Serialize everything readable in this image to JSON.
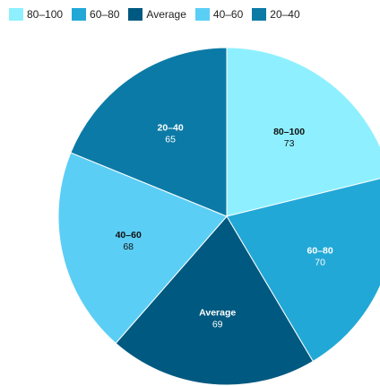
{
  "chart_data": {
    "type": "pie",
    "title": "",
    "categories": [
      "80–100",
      "60–80",
      "Average",
      "40–60",
      "20–40"
    ],
    "values": [
      73,
      70,
      69,
      68,
      65
    ],
    "colors": [
      "#8ef0ff",
      "#22a8d6",
      "#005980",
      "#5bcef5",
      "#0c7aa6"
    ],
    "label_colors": [
      "#111111",
      "#ffffff",
      "#ffffff",
      "#111111",
      "#ffffff"
    ],
    "legend": {
      "position": "top-left",
      "entries": [
        "80–100",
        "60–80",
        "Average",
        "40–60",
        "20–40"
      ]
    },
    "start_angle": "12 o'clock",
    "direction": "clockwise"
  }
}
